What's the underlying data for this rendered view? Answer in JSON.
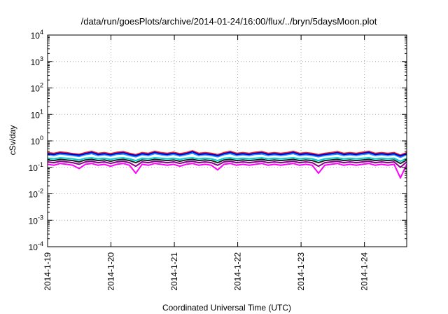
{
  "chart_data": {
    "type": "line",
    "title": "/data/run/goesPlots/archive/2014-01-24/16:00/flux/../bryn/5daysMoon.plot",
    "xlabel": "Coordinated Universal Time (UTC)",
    "ylabel": "cSv/day",
    "y_scale": "log",
    "ylim": [
      0.0001,
      10000
    ],
    "y_ticks": [
      {
        "value": 0.0001,
        "base": "10",
        "exp": "-4"
      },
      {
        "value": 0.001,
        "base": "10",
        "exp": "-3"
      },
      {
        "value": 0.01,
        "base": "10",
        "exp": "-2"
      },
      {
        "value": 0.1,
        "base": "10",
        "exp": "-1"
      },
      {
        "value": 1,
        "base": "10",
        "exp": "0"
      },
      {
        "value": 10,
        "base": "10",
        "exp": "1"
      },
      {
        "value": 100,
        "base": "10",
        "exp": "2"
      },
      {
        "value": 1000,
        "base": "10",
        "exp": "3"
      },
      {
        "value": 10000,
        "base": "10",
        "exp": "4"
      }
    ],
    "xlim": [
      "2014-01-19",
      "2014-01-24T16:00"
    ],
    "x_ticks": [
      "2014-1-19",
      "2014-1-20",
      "2014-1-21",
      "2014-1-22",
      "2014-1-23",
      "2014-1-24"
    ],
    "grid": true,
    "legend": "none",
    "series": [
      {
        "color": "#ff00ff",
        "values": [
          0.13,
          0.12,
          0.14,
          0.13,
          0.12,
          0.09,
          0.13,
          0.14,
          0.12,
          0.13,
          0.11,
          0.13,
          0.14,
          0.12,
          0.06,
          0.13,
          0.12,
          0.14,
          0.13,
          0.12,
          0.13,
          0.11,
          0.13,
          0.14,
          0.12,
          0.13,
          0.12,
          0.08,
          0.13,
          0.14,
          0.12,
          0.13,
          0.12,
          0.13,
          0.14,
          0.12,
          0.13,
          0.12,
          0.13,
          0.14,
          0.12,
          0.13,
          0.12,
          0.06,
          0.12,
          0.13,
          0.14,
          0.12,
          0.13,
          0.12,
          0.13,
          0.14,
          0.12,
          0.13,
          0.12,
          0.13,
          0.04,
          0.13
        ]
      },
      {
        "color": "#8b008b",
        "values": [
          0.16,
          0.15,
          0.17,
          0.16,
          0.15,
          0.13,
          0.16,
          0.17,
          0.15,
          0.16,
          0.14,
          0.16,
          0.17,
          0.15,
          0.11,
          0.16,
          0.15,
          0.17,
          0.16,
          0.15,
          0.16,
          0.14,
          0.16,
          0.17,
          0.15,
          0.16,
          0.15,
          0.12,
          0.16,
          0.17,
          0.15,
          0.16,
          0.15,
          0.16,
          0.17,
          0.15,
          0.16,
          0.15,
          0.16,
          0.17,
          0.15,
          0.16,
          0.15,
          0.11,
          0.15,
          0.16,
          0.17,
          0.15,
          0.16,
          0.15,
          0.16,
          0.17,
          0.15,
          0.16,
          0.15,
          0.16,
          0.1,
          0.16
        ]
      },
      {
        "color": "#222222",
        "values": [
          0.19,
          0.18,
          0.2,
          0.19,
          0.18,
          0.16,
          0.19,
          0.2,
          0.18,
          0.19,
          0.17,
          0.19,
          0.2,
          0.18,
          0.15,
          0.19,
          0.18,
          0.2,
          0.19,
          0.18,
          0.19,
          0.17,
          0.19,
          0.2,
          0.18,
          0.19,
          0.18,
          0.15,
          0.19,
          0.2,
          0.18,
          0.19,
          0.18,
          0.19,
          0.2,
          0.18,
          0.19,
          0.18,
          0.19,
          0.2,
          0.18,
          0.19,
          0.18,
          0.15,
          0.18,
          0.19,
          0.2,
          0.18,
          0.19,
          0.18,
          0.19,
          0.2,
          0.18,
          0.19,
          0.18,
          0.19,
          0.14,
          0.19
        ]
      },
      {
        "color": "#00cfcf",
        "values": [
          0.22,
          0.21,
          0.23,
          0.22,
          0.21,
          0.19,
          0.22,
          0.23,
          0.21,
          0.22,
          0.2,
          0.22,
          0.23,
          0.21,
          0.18,
          0.22,
          0.21,
          0.23,
          0.22,
          0.21,
          0.22,
          0.2,
          0.22,
          0.23,
          0.21,
          0.22,
          0.21,
          0.18,
          0.22,
          0.23,
          0.21,
          0.22,
          0.21,
          0.22,
          0.23,
          0.21,
          0.22,
          0.21,
          0.22,
          0.23,
          0.21,
          0.22,
          0.21,
          0.18,
          0.21,
          0.22,
          0.23,
          0.21,
          0.22,
          0.21,
          0.22,
          0.23,
          0.21,
          0.22,
          0.21,
          0.22,
          0.17,
          0.22
        ]
      },
      {
        "color": "#1e90ff",
        "values": [
          0.3,
          0.28,
          0.32,
          0.3,
          0.28,
          0.26,
          0.3,
          0.33,
          0.28,
          0.3,
          0.27,
          0.31,
          0.32,
          0.28,
          0.25,
          0.3,
          0.28,
          0.33,
          0.3,
          0.28,
          0.31,
          0.27,
          0.3,
          0.34,
          0.28,
          0.3,
          0.28,
          0.25,
          0.3,
          0.33,
          0.28,
          0.3,
          0.28,
          0.31,
          0.32,
          0.28,
          0.3,
          0.28,
          0.3,
          0.33,
          0.28,
          0.3,
          0.28,
          0.25,
          0.28,
          0.3,
          0.32,
          0.28,
          0.3,
          0.28,
          0.31,
          0.33,
          0.28,
          0.3,
          0.28,
          0.3,
          0.24,
          0.3
        ]
      },
      {
        "color": "#ff2020",
        "values": [
          0.36,
          0.34,
          0.38,
          0.36,
          0.33,
          0.31,
          0.36,
          0.4,
          0.34,
          0.36,
          0.33,
          0.37,
          0.39,
          0.34,
          0.3,
          0.36,
          0.34,
          0.4,
          0.36,
          0.34,
          0.37,
          0.33,
          0.36,
          0.42,
          0.34,
          0.36,
          0.34,
          0.3,
          0.36,
          0.4,
          0.34,
          0.36,
          0.34,
          0.37,
          0.39,
          0.34,
          0.36,
          0.34,
          0.36,
          0.4,
          0.34,
          0.36,
          0.34,
          0.3,
          0.34,
          0.36,
          0.39,
          0.34,
          0.36,
          0.34,
          0.37,
          0.4,
          0.34,
          0.36,
          0.34,
          0.36,
          0.29,
          0.36
        ]
      },
      {
        "color": "#0000cd",
        "values": [
          0.33,
          0.31,
          0.35,
          0.33,
          0.31,
          0.29,
          0.33,
          0.37,
          0.31,
          0.33,
          0.3,
          0.34,
          0.36,
          0.31,
          0.28,
          0.33,
          0.31,
          0.37,
          0.33,
          0.31,
          0.34,
          0.3,
          0.33,
          0.39,
          0.31,
          0.33,
          0.31,
          0.28,
          0.33,
          0.37,
          0.31,
          0.33,
          0.31,
          0.34,
          0.36,
          0.31,
          0.33,
          0.31,
          0.33,
          0.37,
          0.31,
          0.33,
          0.31,
          0.28,
          0.31,
          0.33,
          0.36,
          0.31,
          0.33,
          0.31,
          0.34,
          0.37,
          0.31,
          0.33,
          0.31,
          0.33,
          0.27,
          0.33
        ]
      }
    ]
  }
}
